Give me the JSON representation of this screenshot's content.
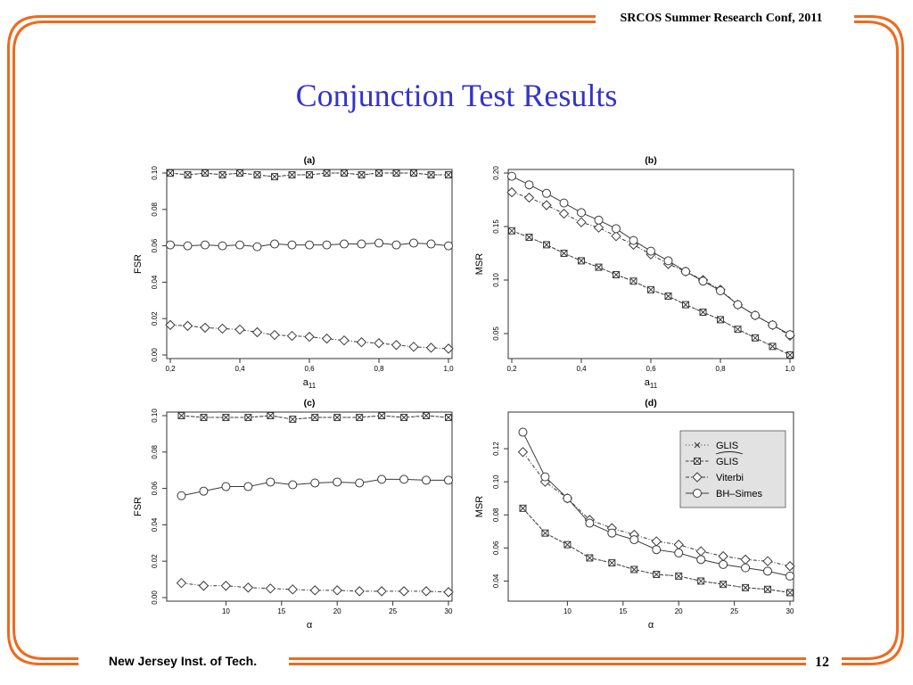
{
  "slide": {
    "title": "Conjunction Test Results",
    "conference": "SRCOS Summer Research Conf, 2011",
    "institution": "New Jersey Inst. of Tech.",
    "page_number": "12"
  },
  "colors": {
    "frame_orange": "#ee6a1f",
    "title_blue": "#3333cc",
    "legend_bg": "#e2e2e2"
  },
  "legend": {
    "entries": [
      {
        "label": "GLIS",
        "marker": "x",
        "dash": "1,2.5"
      },
      {
        "label": "GLIS",
        "marker": "square-x",
        "dash": "3.5,2",
        "tilde": true
      },
      {
        "label": "Viterbi",
        "marker": "diamond",
        "dash": "4,2,1,2"
      },
      {
        "label": "BH–Simes",
        "marker": "circle",
        "dash": ""
      }
    ]
  },
  "chart_data": [
    {
      "type": "line",
      "panel": "a",
      "title": "(a)",
      "xlabel": "a",
      "xlabel_sub": "11",
      "ylabel": "FSR",
      "xlim": [
        0.2,
        1.0
      ],
      "ylim": [
        0.0,
        0.1
      ],
      "xticks": [
        0.2,
        0.4,
        0.6,
        0.8,
        1.0
      ],
      "xtick_labels": [
        "0,2",
        "0,4",
        "0,6",
        "0,8",
        "1,0"
      ],
      "yticks": [
        0.0,
        0.02,
        0.04,
        0.06,
        0.08,
        0.1
      ],
      "ytick_labels": [
        "0.00",
        "0.02",
        "0.04",
        "0.06",
        "0.08",
        "0.10"
      ],
      "x": [
        0.2,
        0.25,
        0.3,
        0.35,
        0.4,
        0.45,
        0.5,
        0.55,
        0.6,
        0.65,
        0.7,
        0.75,
        0.8,
        0.85,
        0.9,
        0.95,
        1.0
      ],
      "series": [
        {
          "marker": "x",
          "dash": "1,2.5",
          "values": [
            0.1,
            0.099,
            0.1,
            0.099,
            0.1,
            0.099,
            0.098,
            0.099,
            0.099,
            0.1,
            0.1,
            0.099,
            0.1,
            0.1,
            0.1,
            0.099,
            0.099
          ]
        },
        {
          "marker": "square-x",
          "dash": "3.5,2",
          "values": [
            0.1,
            0.099,
            0.1,
            0.099,
            0.1,
            0.099,
            0.098,
            0.099,
            0.099,
            0.1,
            0.1,
            0.099,
            0.1,
            0.1,
            0.1,
            0.099,
            0.099
          ]
        },
        {
          "marker": "diamond",
          "dash": "4,2,1,2",
          "values": [
            0.0165,
            0.016,
            0.015,
            0.0145,
            0.014,
            0.0125,
            0.011,
            0.0105,
            0.01,
            0.009,
            0.008,
            0.007,
            0.0065,
            0.0055,
            0.0045,
            0.004,
            0.0035
          ]
        },
        {
          "marker": "circle",
          "dash": "",
          "values": [
            0.0605,
            0.06,
            0.0605,
            0.06,
            0.0605,
            0.0595,
            0.061,
            0.0605,
            0.0605,
            0.0605,
            0.061,
            0.061,
            0.0615,
            0.0605,
            0.0615,
            0.061,
            0.06
          ]
        }
      ]
    },
    {
      "type": "line",
      "panel": "b",
      "title": "(b)",
      "xlabel": "a",
      "xlabel_sub": "11",
      "ylabel": "MSR",
      "xlim": [
        0.2,
        1.0
      ],
      "ylim": [
        0.03,
        0.2
      ],
      "xticks": [
        0.2,
        0.4,
        0.6,
        0.8,
        1.0
      ],
      "xtick_labels": [
        "0,2",
        "0,4",
        "0,6",
        "0,8",
        "1,0"
      ],
      "yticks": [
        0.05,
        0.1,
        0.15,
        0.2
      ],
      "ytick_labels": [
        "0.05",
        "0.10",
        "0.15",
        "0.20"
      ],
      "x": [
        0.2,
        0.25,
        0.3,
        0.35,
        0.4,
        0.45,
        0.5,
        0.55,
        0.6,
        0.65,
        0.7,
        0.75,
        0.8,
        0.85,
        0.9,
        0.95,
        1.0
      ],
      "series": [
        {
          "marker": "x",
          "dash": "1,2.5",
          "values": [
            0.146,
            0.14,
            0.133,
            0.125,
            0.118,
            0.112,
            0.105,
            0.099,
            0.091,
            0.085,
            0.077,
            0.07,
            0.063,
            0.054,
            0.046,
            0.038,
            0.03
          ]
        },
        {
          "marker": "square-x",
          "dash": "3.5,2",
          "values": [
            0.146,
            0.14,
            0.133,
            0.125,
            0.118,
            0.112,
            0.105,
            0.099,
            0.091,
            0.085,
            0.077,
            0.07,
            0.063,
            0.054,
            0.046,
            0.038,
            0.03
          ]
        },
        {
          "marker": "diamond",
          "dash": "4,2,1,2",
          "values": [
            0.182,
            0.177,
            0.17,
            0.162,
            0.154,
            0.149,
            0.141,
            0.133,
            0.124,
            0.115,
            0.108,
            0.1,
            0.091,
            0.077,
            0.067,
            0.058,
            0.048
          ]
        },
        {
          "marker": "circle",
          "dash": "",
          "values": [
            0.197,
            0.189,
            0.181,
            0.172,
            0.163,
            0.156,
            0.148,
            0.137,
            0.127,
            0.118,
            0.108,
            0.099,
            0.09,
            0.077,
            0.067,
            0.058,
            0.049
          ]
        }
      ]
    },
    {
      "type": "line",
      "panel": "c",
      "title": "(c)",
      "xlabel": "α",
      "ylabel": "FSR",
      "xlim": [
        5,
        30
      ],
      "ylim": [
        0.0,
        0.1
      ],
      "xticks": [
        10,
        15,
        20,
        25,
        30
      ],
      "xtick_labels": [
        "10",
        "15",
        "20",
        "25",
        "30"
      ],
      "yticks": [
        0.0,
        0.02,
        0.04,
        0.06,
        0.08,
        0.1
      ],
      "ytick_labels": [
        "0.00",
        "0.02",
        "0.04",
        "0.06",
        "0.08",
        "0.10"
      ],
      "x": [
        6,
        8,
        10,
        12,
        14,
        16,
        18,
        20,
        22,
        24,
        26,
        28,
        30
      ],
      "series": [
        {
          "marker": "x",
          "dash": "1,2.5",
          "values": [
            0.1,
            0.099,
            0.099,
            0.099,
            0.1,
            0.098,
            0.099,
            0.099,
            0.099,
            0.1,
            0.099,
            0.1,
            0.099
          ]
        },
        {
          "marker": "square-x",
          "dash": "3.5,2",
          "values": [
            0.1,
            0.099,
            0.099,
            0.099,
            0.1,
            0.098,
            0.099,
            0.099,
            0.099,
            0.1,
            0.099,
            0.1,
            0.099
          ]
        },
        {
          "marker": "diamond",
          "dash": "4,2,1,2",
          "values": [
            0.008,
            0.0065,
            0.0065,
            0.0055,
            0.005,
            0.0045,
            0.004,
            0.004,
            0.0035,
            0.0035,
            0.0035,
            0.0035,
            0.003
          ]
        },
        {
          "marker": "circle",
          "dash": "",
          "values": [
            0.056,
            0.0585,
            0.061,
            0.061,
            0.0635,
            0.062,
            0.063,
            0.0635,
            0.063,
            0.065,
            0.065,
            0.0645,
            0.0645
          ]
        }
      ]
    },
    {
      "type": "line",
      "panel": "d",
      "title": "(d)",
      "xlabel": "α",
      "ylabel": "MSR",
      "xlim": [
        5,
        30
      ],
      "ylim": [
        0.03,
        0.14
      ],
      "xticks": [
        10,
        15,
        20,
        25,
        30
      ],
      "xtick_labels": [
        "10",
        "15",
        "20",
        "25",
        "30"
      ],
      "yticks": [
        0.04,
        0.06,
        0.08,
        0.1,
        0.12
      ],
      "ytick_labels": [
        "0.04",
        "0.06",
        "0.08",
        "0.10",
        "0.12"
      ],
      "x": [
        6,
        8,
        10,
        12,
        14,
        16,
        18,
        20,
        22,
        24,
        26,
        28,
        30
      ],
      "series": [
        {
          "marker": "x",
          "dash": "1,2.5",
          "values": [
            0.084,
            0.069,
            0.062,
            0.054,
            0.051,
            0.047,
            0.044,
            0.043,
            0.04,
            0.038,
            0.036,
            0.035,
            0.033
          ]
        },
        {
          "marker": "square-x",
          "dash": "3.5,2",
          "values": [
            0.084,
            0.069,
            0.062,
            0.054,
            0.051,
            0.047,
            0.044,
            0.043,
            0.04,
            0.038,
            0.036,
            0.035,
            0.033
          ]
        },
        {
          "marker": "diamond",
          "dash": "4,2,1,2",
          "values": [
            0.118,
            0.1,
            0.09,
            0.077,
            0.072,
            0.068,
            0.064,
            0.062,
            0.058,
            0.055,
            0.053,
            0.052,
            0.049
          ]
        },
        {
          "marker": "circle",
          "dash": "",
          "values": [
            0.13,
            0.103,
            0.09,
            0.075,
            0.069,
            0.065,
            0.059,
            0.057,
            0.053,
            0.05,
            0.048,
            0.046,
            0.043
          ]
        }
      ],
      "legend": "top-right"
    }
  ]
}
